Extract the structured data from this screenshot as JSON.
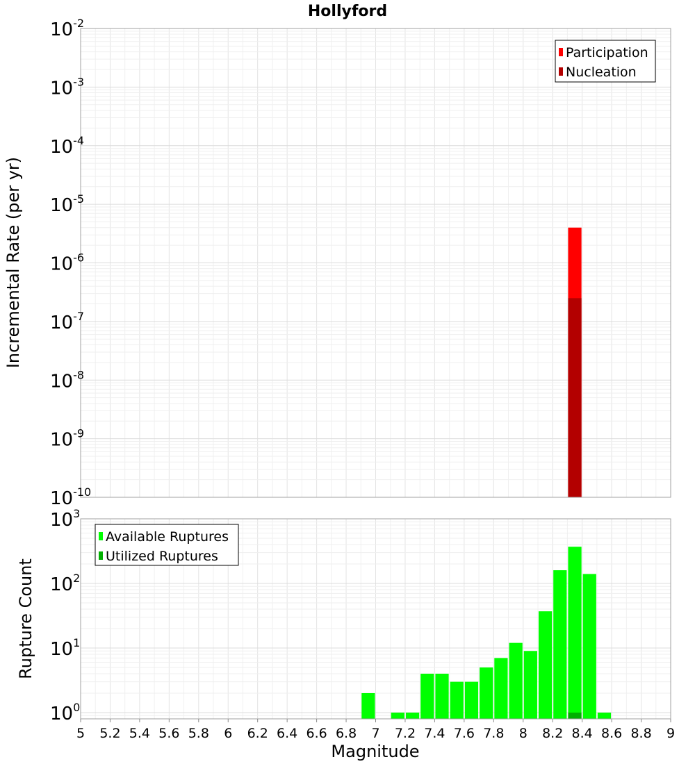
{
  "chart_data": [
    {
      "type": "bar",
      "title": "Hollyford",
      "xlabel": "",
      "ylabel": "Incremental Rate (per yr)",
      "xlim": [
        5,
        9
      ],
      "ylim": [
        1e-10,
        0.01
      ],
      "yscale": "log",
      "grid": true,
      "legend_position": "top-right",
      "ytick_labels": [
        {
          "base": "10",
          "exp": "-10"
        },
        {
          "base": "10",
          "exp": "-9"
        },
        {
          "base": "10",
          "exp": "-8"
        },
        {
          "base": "10",
          "exp": "-7"
        },
        {
          "base": "10",
          "exp": "-6"
        },
        {
          "base": "10",
          "exp": "-5"
        },
        {
          "base": "10",
          "exp": "-4"
        },
        {
          "base": "10",
          "exp": "-3"
        },
        {
          "base": "10",
          "exp": "-2"
        }
      ],
      "bin_width": 0.1,
      "series": [
        {
          "name": "Participation",
          "color": "#ff0000",
          "x": [
            8.35
          ],
          "values": [
            4e-06
          ]
        },
        {
          "name": "Nucleation",
          "color": "#b30000",
          "x": [
            8.35
          ],
          "values": [
            2.5e-07
          ]
        }
      ]
    },
    {
      "type": "bar",
      "title": "",
      "xlabel": "Magnitude",
      "ylabel": "Rupture Count",
      "xlim": [
        5,
        9
      ],
      "ylim": [
        0.8,
        1000
      ],
      "yscale": "log",
      "grid": true,
      "legend_position": "top-left",
      "xtick_labels": [
        "5",
        "5.2",
        "5.4",
        "5.6",
        "5.8",
        "6",
        "6.2",
        "6.4",
        "6.6",
        "6.8",
        "7",
        "7.2",
        "7.4",
        "7.6",
        "7.8",
        "8",
        "8.2",
        "8.4",
        "8.6",
        "8.8",
        "9"
      ],
      "ytick_labels": [
        {
          "base": "10",
          "exp": "0"
        },
        {
          "base": "10",
          "exp": "1"
        },
        {
          "base": "10",
          "exp": "2"
        },
        {
          "base": "10",
          "exp": "3"
        }
      ],
      "bin_width": 0.1,
      "series": [
        {
          "name": "Available Ruptures",
          "color": "#00ff00",
          "x": [
            6.95,
            7.15,
            7.25,
            7.35,
            7.45,
            7.55,
            7.65,
            7.75,
            7.85,
            7.95,
            8.05,
            8.15,
            8.25,
            8.35,
            8.45,
            8.55
          ],
          "values": [
            2,
            1,
            1,
            4,
            4,
            3,
            3,
            5,
            7,
            12,
            9,
            37,
            160,
            370,
            140,
            1
          ]
        },
        {
          "name": "Utilized Ruptures",
          "color": "#00b000",
          "x": [
            8.35
          ],
          "values": [
            1
          ]
        }
      ]
    }
  ]
}
